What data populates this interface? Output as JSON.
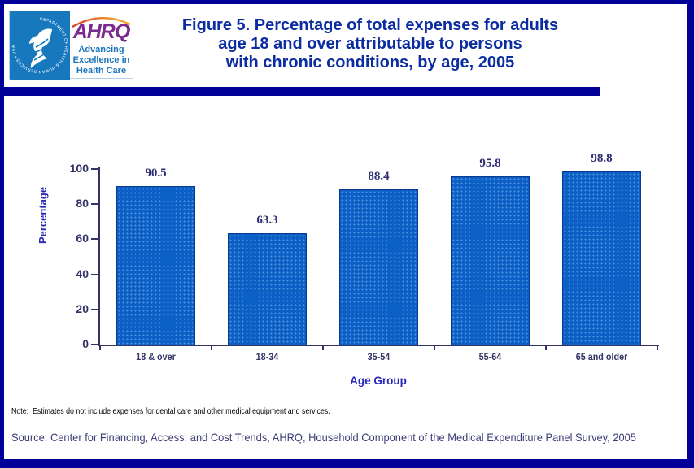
{
  "header": {
    "logo": {
      "ring_text": "DEPARTMENT OF HEALTH & HUMAN SERVICES • USA",
      "acronym": "AHRQ",
      "tagline_line1": "Advancing",
      "tagline_line2": "Excellence in",
      "tagline_line3": "Health Care"
    },
    "title_lines": {
      "0": "Figure 5. Percentage of total expenses for adults",
      "1": "age 18 and over attributable to persons",
      "2": "with chronic conditions, by age, 2005"
    }
  },
  "chart_data": {
    "type": "bar",
    "title": "Figure 5. Percentage of total expenses for adults age 18 and over attributable to persons with chronic conditions, by age, 2005",
    "categories": [
      "18 & over",
      "18-34",
      "35-54",
      "55-64",
      "65 and older"
    ],
    "values": [
      90.5,
      63.3,
      88.4,
      95.8,
      98.8
    ],
    "value_labels": [
      "90.5",
      "63.3",
      "88.4",
      "95.8",
      "98.8"
    ],
    "xlabel": "Age Group",
    "ylabel": "Percentage",
    "ylim": [
      0,
      100
    ],
    "yticks": [
      0,
      20,
      40,
      60,
      80,
      100
    ],
    "grid": false,
    "legend": "none",
    "bar_color": "#0b5fc5",
    "bar_border_color": "#0a3890",
    "axis_color": "#333366"
  },
  "footer": {
    "note": "Note:  Estimates do not include expenses for dental care and other medical equipment and services.",
    "source": "Source: Center for Financing, Access, and Cost Trends, AHRQ, Household Component of the Medical Expenditure Panel Survey, 2005"
  },
  "colors": {
    "frame_navy": "#000099",
    "title_navy": "#0b2da0",
    "hhs_blue": "#1878be",
    "ahrq_purple": "#7b2a8e",
    "tagline_blue": "#1b75bc"
  }
}
